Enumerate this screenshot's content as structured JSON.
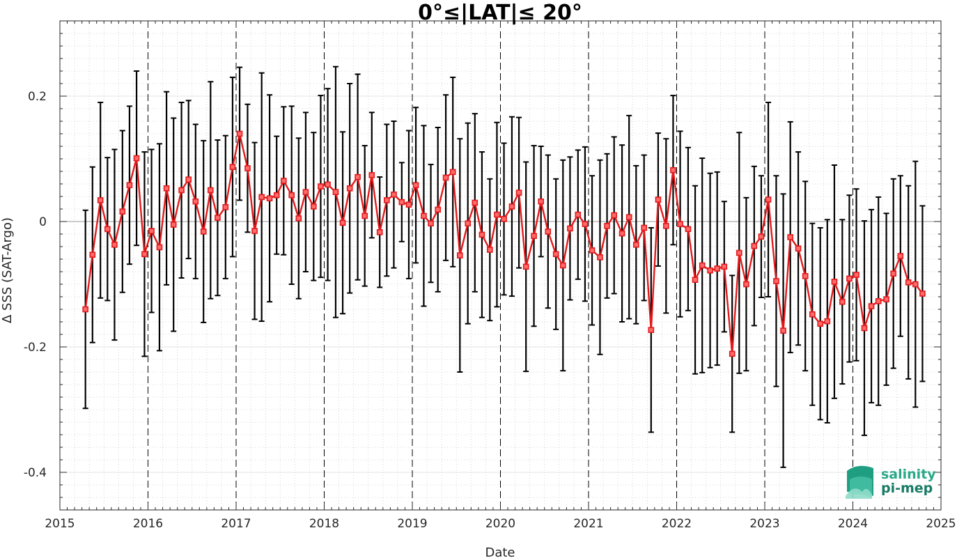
{
  "chart_data": {
    "type": "line",
    "title": "0°≤|LAT|≤ 20°",
    "xlabel": "Date",
    "ylabel": "Δ SSS (SAT-Argo)",
    "xlim": [
      2015,
      2025
    ],
    "ylim": [
      -0.46,
      0.32
    ],
    "x_ticks": [
      2015,
      2016,
      2017,
      2018,
      2019,
      2020,
      2021,
      2022,
      2023,
      2024,
      2025
    ],
    "x_tick_labels": [
      "2015",
      "2016",
      "2017",
      "2018",
      "2019",
      "2020",
      "2021",
      "2022",
      "2023",
      "2024",
      "2025"
    ],
    "y_ticks": [
      -0.4,
      -0.2,
      0,
      0.2
    ],
    "y_tick_labels": [
      "-0.4",
      "-0.2",
      "0",
      "0.2"
    ],
    "grid": "minor dotted",
    "year_boundaries_dashed": true,
    "zero_line": true,
    "colors": {
      "line": "#e31a1c",
      "errorbar": "#000000",
      "dashed": "#000000"
    },
    "series": [
      {
        "marker": "square",
        "x": [
          2015.29,
          2015.37,
          2015.46,
          2015.54,
          2015.62,
          2015.71,
          2015.79,
          2015.87,
          2015.96,
          2016.04,
          2016.13,
          2016.21,
          2016.29,
          2016.38,
          2016.46,
          2016.54,
          2016.63,
          2016.71,
          2016.79,
          2016.88,
          2016.96,
          2017.04,
          2017.13,
          2017.21,
          2017.29,
          2017.38,
          2017.46,
          2017.54,
          2017.63,
          2017.71,
          2017.79,
          2017.88,
          2017.96,
          2018.04,
          2018.13,
          2018.21,
          2018.29,
          2018.38,
          2018.46,
          2018.54,
          2018.63,
          2018.71,
          2018.79,
          2018.88,
          2018.96,
          2019.04,
          2019.13,
          2019.21,
          2019.29,
          2019.38,
          2019.46,
          2019.54,
          2019.63,
          2019.71,
          2019.79,
          2019.88,
          2019.96,
          2020.04,
          2020.13,
          2020.21,
          2020.29,
          2020.38,
          2020.46,
          2020.54,
          2020.63,
          2020.71,
          2020.79,
          2020.88,
          2020.96,
          2021.04,
          2021.13,
          2021.21,
          2021.29,
          2021.38,
          2021.46,
          2021.54,
          2021.63,
          2021.71,
          2021.79,
          2021.88,
          2021.96,
          2022.04,
          2022.13,
          2022.21,
          2022.29,
          2022.38,
          2022.46,
          2022.54,
          2022.63,
          2022.71,
          2022.79,
          2022.88,
          2022.96,
          2023.04,
          2023.13,
          2023.21,
          2023.29,
          2023.38,
          2023.46,
          2023.54,
          2023.63,
          2023.71,
          2023.79,
          2023.88,
          2023.96,
          2024.04,
          2024.13,
          2024.21,
          2024.29,
          2024.38,
          2024.46,
          2024.54,
          2024.63,
          2024.71,
          2024.79
        ],
        "y": [
          -0.14,
          -0.053,
          0.034,
          -0.012,
          -0.037,
          0.016,
          0.058,
          0.101,
          -0.052,
          -0.015,
          -0.041,
          0.053,
          -0.005,
          0.05,
          0.067,
          0.032,
          -0.016,
          0.05,
          0.006,
          0.023,
          0.087,
          0.14,
          0.085,
          -0.015,
          0.039,
          0.037,
          0.042,
          0.065,
          0.042,
          0.005,
          0.047,
          0.024,
          0.056,
          0.059,
          0.047,
          -0.002,
          0.053,
          0.071,
          0.009,
          0.074,
          -0.017,
          0.034,
          0.043,
          0.031,
          0.027,
          0.058,
          0.009,
          -0.003,
          0.019,
          0.07,
          0.079,
          -0.054,
          -0.003,
          0.03,
          -0.021,
          -0.045,
          0.011,
          0.004,
          0.024,
          0.046,
          -0.072,
          -0.023,
          0.032,
          -0.016,
          -0.052,
          -0.07,
          -0.011,
          0.011,
          -0.004,
          -0.046,
          -0.057,
          -0.007,
          0.01,
          -0.019,
          0.007,
          -0.037,
          -0.01,
          -0.173,
          0.035,
          -0.007,
          0.082,
          -0.004,
          -0.012,
          -0.093,
          -0.07,
          -0.078,
          -0.075,
          -0.072,
          -0.211,
          -0.05,
          -0.1,
          -0.039,
          -0.024,
          0.035,
          -0.095,
          -0.174,
          -0.025,
          -0.043,
          -0.087,
          -0.148,
          -0.163,
          -0.159,
          -0.096,
          -0.128,
          -0.091,
          -0.085,
          -0.17,
          -0.135,
          -0.127,
          -0.124,
          -0.083,
          -0.055,
          -0.097,
          -0.1,
          -0.115
        ],
        "err": [
          0.158,
          0.14,
          0.156,
          0.114,
          0.152,
          0.129,
          0.126,
          0.139,
          0.163,
          0.13,
          0.165,
          0.154,
          0.17,
          0.14,
          0.126,
          0.123,
          0.145,
          0.173,
          0.124,
          0.114,
          0.143,
          0.106,
          0.102,
          0.141,
          0.198,
          0.165,
          0.094,
          0.118,
          0.142,
          0.128,
          0.127,
          0.118,
          0.145,
          0.153,
          0.2,
          0.145,
          0.167,
          0.164,
          0.112,
          0.1,
          0.088,
          0.121,
          0.117,
          0.063,
          0.118,
          0.124,
          0.144,
          0.094,
          0.131,
          0.132,
          0.151,
          0.186,
          0.16,
          0.142,
          0.132,
          0.113,
          0.147,
          0.121,
          0.143,
          0.12,
          0.167,
          0.144,
          0.088,
          0.122,
          0.12,
          0.168,
          0.114,
          0.103,
          0.123,
          0.119,
          0.155,
          0.115,
          0.125,
          0.141,
          0.162,
          0.126,
          0.116,
          0.163,
          0.106,
          0.139,
          0.119,
          0.148,
          0.13,
          0.15,
          0.171,
          0.155,
          0.154,
          0.104,
          0.125,
          0.192,
          0.138,
          0.127,
          0.097,
          0.155,
          0.168,
          0.218,
          0.184,
          0.154,
          0.151,
          0.145,
          0.153,
          0.162,
          0.186,
          0.131,
          0.133,
          0.137,
          0.171,
          0.154,
          0.166,
          0.137,
          0.151,
          0.128,
          0.154,
          0.196,
          0.14
        ]
      }
    ]
  },
  "logo": {
    "line1": "salinity",
    "line2": "pi-mep"
  }
}
